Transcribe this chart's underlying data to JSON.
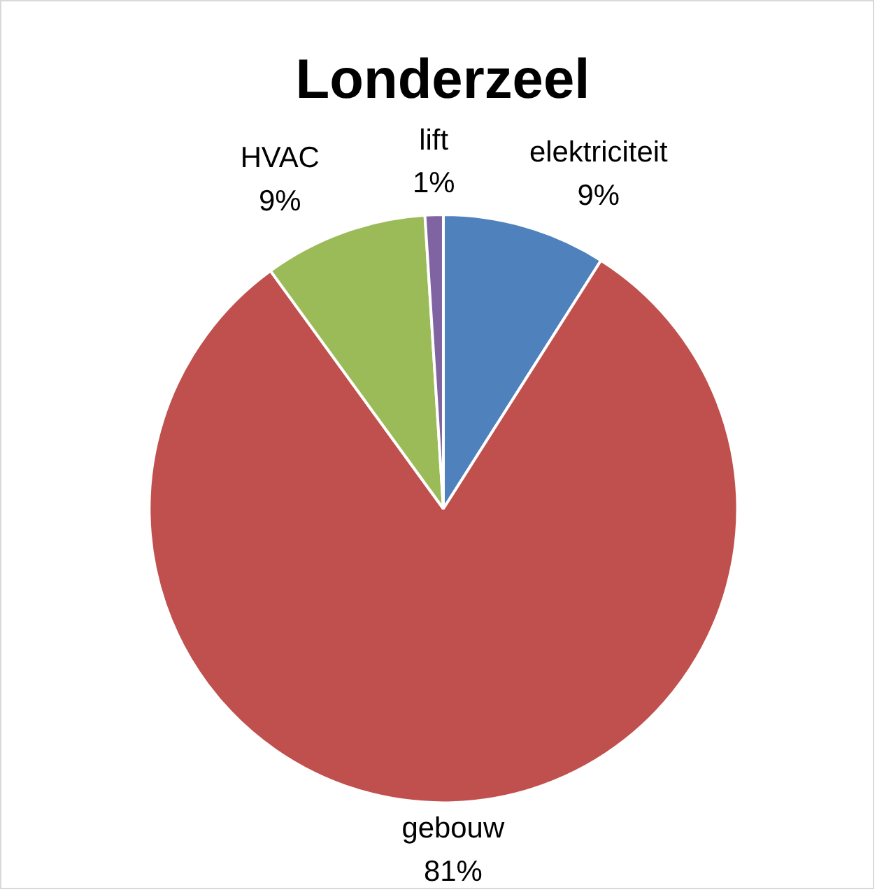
{
  "chart_data": {
    "type": "pie",
    "title": "Londerzeel",
    "categories": [
      "elektriciteit",
      "gebouw",
      "HVAC",
      "lift"
    ],
    "values": [
      9,
      81,
      9,
      1
    ],
    "colors": [
      "#4f81bd",
      "#c0504d",
      "#9bbb59",
      "#8064a2"
    ],
    "value_labels": [
      "9%",
      "81%",
      "9%",
      "1%"
    ]
  }
}
